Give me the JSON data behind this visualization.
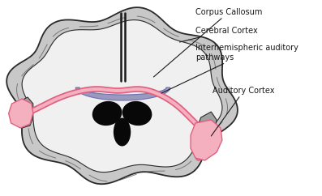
{
  "background_color": "#ffffff",
  "brain_white_fill": "#f0f0f0",
  "brain_gray_fill": "#c8c8c8",
  "brain_edge_color": "#2a2a2a",
  "gray_matter_fill": "#b0b0b0",
  "sulci_color": "#555555",
  "fissure_color": "#1a1a1a",
  "cc_fill": "#9090bb",
  "cc_edge": "#6666aa",
  "ventricle_fill": "#080808",
  "pink_line_outer": "#e06080",
  "pink_line_inner": "#f5b0c0",
  "auditory_cortex_fill": "#f5b0c0",
  "auditory_cortex_edge": "#e06080",
  "label_cc": "Corpus Callosum",
  "label_cerebral": "Cerebral Cortex",
  "label_pathways": "Interhemispheric auditory\npathways",
  "label_auditory": "Auditory Cortex",
  "label_fontsize": 7.0,
  "label_color": "#1a1a1a",
  "leader_color": "#1a1a1a",
  "leader_lw": 0.8
}
